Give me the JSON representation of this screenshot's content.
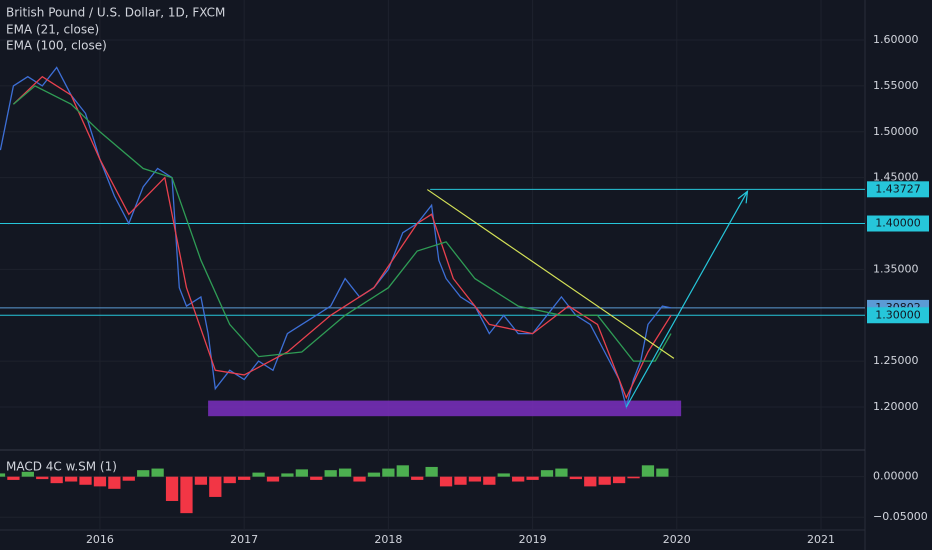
{
  "chart_data": [
    {
      "type": "line",
      "title": "British Pound / U.S. Dollar, 1D, FXCM",
      "xlim": [
        2015.307,
        2021.305
      ],
      "xticks": [
        2016,
        2017,
        2018,
        2019,
        2020,
        2021
      ],
      "ylim": [
        1.1586,
        1.6436
      ],
      "yticks": [
        {
          "value": 1.6,
          "label": "1.60000"
        },
        {
          "value": 1.55,
          "label": "1.55000"
        },
        {
          "value": 1.5,
          "label": "1.50000"
        },
        {
          "value": 1.45,
          "label": "1.45000"
        },
        {
          "value": 1.35,
          "label": "1.35000"
        },
        {
          "value": 1.25,
          "label": "1.25000"
        },
        {
          "value": 1.2,
          "label": "1.20000"
        }
      ],
      "grid": true,
      "series": [
        {
          "color": "#3d6fd6",
          "x": [
            2015.31,
            2015.4,
            2015.5,
            2015.6,
            2015.7,
            2015.8,
            2015.9,
            2016.0,
            2016.1,
            2016.2,
            2016.3,
            2016.4,
            2016.5,
            2016.55,
            2016.6,
            2016.7,
            2016.75,
            2016.8,
            2016.9,
            2017.0,
            2017.1,
            2017.2,
            2017.3,
            2017.4,
            2017.5,
            2017.6,
            2017.7,
            2017.8,
            2017.9,
            2018.0,
            2018.1,
            2018.2,
            2018.3,
            2018.35,
            2018.4,
            2018.5,
            2018.6,
            2018.7,
            2018.8,
            2018.9,
            2019.0,
            2019.1,
            2019.2,
            2019.3,
            2019.4,
            2019.5,
            2019.6,
            2019.65,
            2019.7,
            2019.75,
            2019.8,
            2019.85,
            2019.9,
            2019.96
          ],
          "values": [
            1.48,
            1.55,
            1.56,
            1.55,
            1.57,
            1.54,
            1.52,
            1.47,
            1.43,
            1.4,
            1.44,
            1.46,
            1.45,
            1.33,
            1.31,
            1.32,
            1.28,
            1.22,
            1.24,
            1.23,
            1.25,
            1.24,
            1.28,
            1.29,
            1.3,
            1.31,
            1.34,
            1.32,
            1.33,
            1.35,
            1.39,
            1.4,
            1.42,
            1.36,
            1.34,
            1.32,
            1.31,
            1.28,
            1.3,
            1.28,
            1.28,
            1.3,
            1.32,
            1.3,
            1.29,
            1.26,
            1.23,
            1.2,
            1.23,
            1.25,
            1.29,
            1.3,
            1.31,
            1.308
          ]
        },
        {
          "name": "EMA (21, close)",
          "color": "#e8414e",
          "x": [
            2015.4,
            2015.6,
            2015.8,
            2016.0,
            2016.2,
            2016.45,
            2016.6,
            2016.8,
            2017.0,
            2017.3,
            2017.6,
            2017.9,
            2018.2,
            2018.3,
            2018.45,
            2018.7,
            2019.0,
            2019.25,
            2019.45,
            2019.65,
            2019.8,
            2019.96
          ],
          "values": [
            1.53,
            1.56,
            1.54,
            1.47,
            1.41,
            1.45,
            1.33,
            1.24,
            1.235,
            1.26,
            1.3,
            1.33,
            1.4,
            1.41,
            1.34,
            1.29,
            1.28,
            1.31,
            1.29,
            1.21,
            1.26,
            1.3
          ]
        },
        {
          "name": "EMA (100, close)",
          "color": "#2f9c55",
          "x": [
            2015.4,
            2015.55,
            2015.8,
            2016.0,
            2016.3,
            2016.5,
            2016.7,
            2016.9,
            2017.1,
            2017.4,
            2017.7,
            2018.0,
            2018.2,
            2018.4,
            2018.6,
            2018.9,
            2019.2,
            2019.45,
            2019.7,
            2019.85,
            2019.96
          ],
          "values": [
            1.53,
            1.55,
            1.53,
            1.5,
            1.46,
            1.45,
            1.36,
            1.29,
            1.255,
            1.26,
            1.3,
            1.33,
            1.37,
            1.38,
            1.34,
            1.31,
            1.3,
            1.3,
            1.25,
            1.25,
            1.28
          ]
        }
      ],
      "levels": [
        {
          "value": 1.43727,
          "label": "1.43727",
          "color": "#26c6da",
          "from": 2018.29
        },
        {
          "value": 1.4,
          "label": "1.40000",
          "color": "#26c6da"
        },
        {
          "value": 1.30802,
          "label": "1.30802",
          "color": "#5b9bd5"
        },
        {
          "value": 1.3,
          "label": "1.30000",
          "color": "#26c6da"
        }
      ],
      "zone": {
        "x": [
          2016.75,
          2020.03
        ],
        "y": [
          1.19,
          1.207
        ],
        "color": "#7b2fbf"
      },
      "trendlines": [
        {
          "x": [
            2018.27,
            2019.98
          ],
          "y": [
            1.437,
            1.253
          ],
          "color": "#d4e157"
        },
        {
          "x": [
            2019.65,
            2020.49
          ],
          "y": [
            1.2,
            1.435
          ],
          "color": "#26c6da",
          "arrow": true
        }
      ]
    },
    {
      "type": "histogram-bars",
      "title": "MACD 4C w.SM (1)",
      "ylim": [
        -0.0658,
        0.0329
      ],
      "yticks": [
        {
          "value": 0,
          "label": "0.00000"
        },
        {
          "value": -0.05,
          "label": "−0.05000"
        }
      ],
      "up_color": "#4caf50",
      "down_color": "#f23645",
      "x": [
        2015.3,
        2015.4,
        2015.5,
        2015.6,
        2015.7,
        2015.8,
        2015.9,
        2016.0,
        2016.1,
        2016.2,
        2016.3,
        2016.4,
        2016.5,
        2016.6,
        2016.7,
        2016.8,
        2016.9,
        2017.0,
        2017.1,
        2017.2,
        2017.3,
        2017.4,
        2017.5,
        2017.6,
        2017.7,
        2017.8,
        2017.9,
        2018.0,
        2018.1,
        2018.2,
        2018.3,
        2018.4,
        2018.5,
        2018.6,
        2018.7,
        2018.8,
        2018.9,
        2019.0,
        2019.1,
        2019.2,
        2019.3,
        2019.4,
        2019.5,
        2019.6,
        2019.7,
        2019.8,
        2019.9
      ],
      "values": [
        0.004,
        -0.004,
        0.006,
        -0.003,
        -0.008,
        -0.006,
        -0.01,
        -0.012,
        -0.015,
        -0.005,
        0.008,
        0.01,
        -0.03,
        -0.045,
        -0.01,
        -0.025,
        -0.008,
        -0.004,
        0.005,
        -0.006,
        0.004,
        0.009,
        -0.004,
        0.008,
        0.01,
        -0.006,
        0.005,
        0.01,
        0.014,
        -0.004,
        0.012,
        -0.012,
        -0.01,
        -0.006,
        -0.01,
        0.004,
        -0.006,
        -0.004,
        0.008,
        0.01,
        -0.003,
        -0.012,
        -0.01,
        -0.008,
        -0.002,
        0.014,
        0.01
      ]
    }
  ]
}
